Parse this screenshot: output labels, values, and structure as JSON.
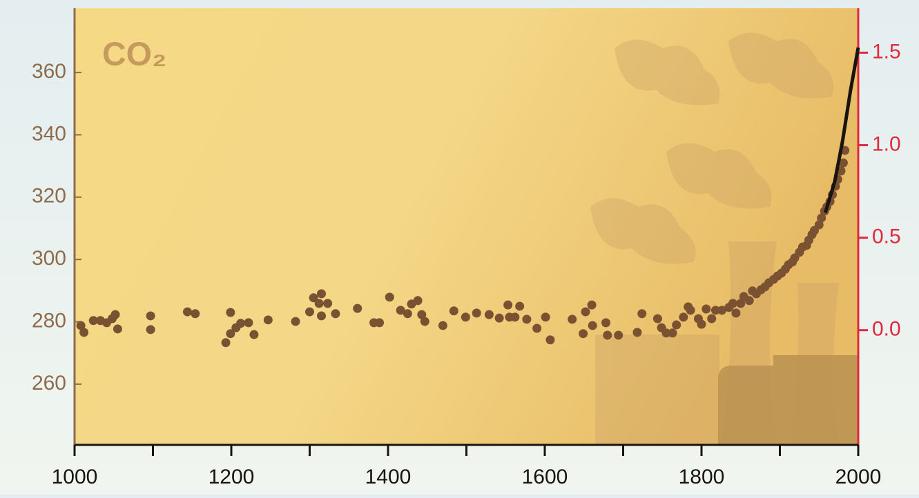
{
  "chart_data": {
    "type": "scatter",
    "title": "CO₂",
    "x": [
      1008,
      1012,
      1024,
      1033,
      1041,
      1048,
      1052,
      1055,
      1097,
      1097,
      1144,
      1154,
      1193,
      1199,
      1199,
      1206,
      1212,
      1222,
      1229,
      1247,
      1282,
      1300,
      1305,
      1312,
      1315,
      1315,
      1323,
      1333,
      1361,
      1382,
      1389,
      1402,
      1416,
      1425,
      1430,
      1438,
      1443,
      1447,
      1470,
      1484,
      1499,
      1513,
      1529,
      1542,
      1553,
      1555,
      1562,
      1568,
      1577,
      1590,
      1601,
      1607,
      1635,
      1649,
      1652,
      1660,
      1661,
      1678,
      1680,
      1694,
      1718,
      1724,
      1744,
      1749,
      1755,
      1763,
      1768,
      1777,
      1783,
      1786,
      1796,
      1800,
      1806,
      1813,
      1818,
      1826,
      1835,
      1840,
      1844,
      1850,
      1854,
      1861,
      1865,
      1870,
      1876,
      1881,
      1886,
      1892,
      1897,
      1902,
      1907,
      1911,
      1916,
      1919,
      1925,
      1929,
      1934,
      1937,
      1941,
      1944,
      1950,
      1953,
      1957,
      1960,
      1964,
      1967,
      1971,
      1974,
      1978,
      1981,
      1983
    ],
    "values": [
      278.8,
      276.6,
      280.4,
      280.4,
      279.7,
      281,
      282.3,
      277.7,
      281.9,
      277.5,
      283.2,
      282.6,
      273.3,
      283,
      276.2,
      278.1,
      279.5,
      279.7,
      275.9,
      280.6,
      280.1,
      283.2,
      287.7,
      285.9,
      289,
      281.9,
      285.9,
      282.6,
      284.3,
      279.7,
      279.7,
      287.9,
      283.7,
      282.6,
      285.7,
      286.8,
      282.3,
      280.1,
      278.8,
      283.5,
      281.5,
      282.8,
      282.3,
      281.2,
      285.4,
      281.5,
      281.5,
      285,
      280.8,
      277.9,
      281.5,
      274.2,
      280.8,
      276.2,
      283.2,
      285.4,
      278.8,
      279.7,
      275.7,
      275.7,
      276.6,
      282.6,
      281,
      278.1,
      276.4,
      276.4,
      279,
      281.5,
      284.8,
      283.7,
      281,
      279.2,
      284.1,
      281,
      283.7,
      283.7,
      284.6,
      285.9,
      282.8,
      285.9,
      288.1,
      286.8,
      289.9,
      289,
      290.3,
      291.2,
      292.5,
      293.6,
      294.7,
      295.6,
      296.9,
      298.3,
      299.2,
      300.5,
      302.3,
      304,
      304.5,
      306.2,
      308,
      309.3,
      311.1,
      313.3,
      315.5,
      316.9,
      318.6,
      320.8,
      323.5,
      325.7,
      328.4,
      331,
      335
    ],
    "color": "#7a5232",
    "line": {
      "x": [
        1958,
        1970,
        1980,
        1990,
        2000
      ],
      "values": [
        315,
        325,
        338,
        354,
        368
      ],
      "color": "#1a1410"
    },
    "xlim": [
      1000,
      2000
    ],
    "xticks": [
      1000,
      1200,
      1400,
      1600,
      1800,
      2000
    ],
    "xminorticks": [
      1100,
      1300,
      1500,
      1700,
      1900
    ],
    "ylim": [
      240.5,
      380.6
    ],
    "yticks": [
      260,
      280,
      300,
      320,
      340,
      360
    ],
    "ycolor": "#8d6b4b",
    "y2lim": [
      -0.62,
      1.74
    ],
    "y2ticks": [
      {
        "value": 0,
        "label": "0.0"
      },
      0.5,
      {
        "value": 1,
        "label": "1.0"
      },
      1.5
    ],
    "y2color": "#e2283c"
  }
}
